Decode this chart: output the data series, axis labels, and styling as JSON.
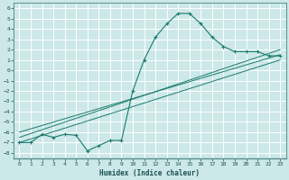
{
  "title": "",
  "xlabel": "Humidex (Indice chaleur)",
  "bg_color": "#cce8e8",
  "grid_color": "#b0d0d0",
  "line_color": "#1a7a6e",
  "xlim": [
    -0.5,
    23.5
  ],
  "ylim": [
    -8.5,
    6.5
  ],
  "xticks": [
    0,
    1,
    2,
    3,
    4,
    5,
    6,
    7,
    8,
    9,
    10,
    11,
    12,
    13,
    14,
    15,
    16,
    17,
    18,
    19,
    20,
    21,
    22,
    23
  ],
  "yticks": [
    6,
    5,
    4,
    3,
    2,
    1,
    0,
    -1,
    -2,
    -3,
    -4,
    -5,
    -6,
    -7,
    -8
  ],
  "curve_x": [
    0,
    1,
    2,
    3,
    4,
    5,
    6,
    7,
    8,
    9,
    10,
    11,
    12,
    13,
    14,
    15,
    16,
    17,
    18,
    19,
    20,
    21,
    22,
    23
  ],
  "curve_y": [
    -7.0,
    -7.0,
    -6.2,
    -6.5,
    -6.2,
    -6.3,
    -7.8,
    -7.3,
    -6.8,
    -6.8,
    -2.0,
    1.0,
    3.2,
    4.5,
    5.5,
    5.5,
    4.5,
    3.2,
    2.3,
    1.8,
    1.8,
    1.8,
    1.4,
    1.4
  ],
  "line1_x": [
    0,
    23
  ],
  "line1_y": [
    -6.5,
    2.0
  ],
  "line2_x": [
    0,
    23
  ],
  "line2_y": [
    -6.0,
    1.5
  ],
  "line3_x": [
    0,
    23
  ],
  "line3_y": [
    -7.0,
    1.0
  ]
}
